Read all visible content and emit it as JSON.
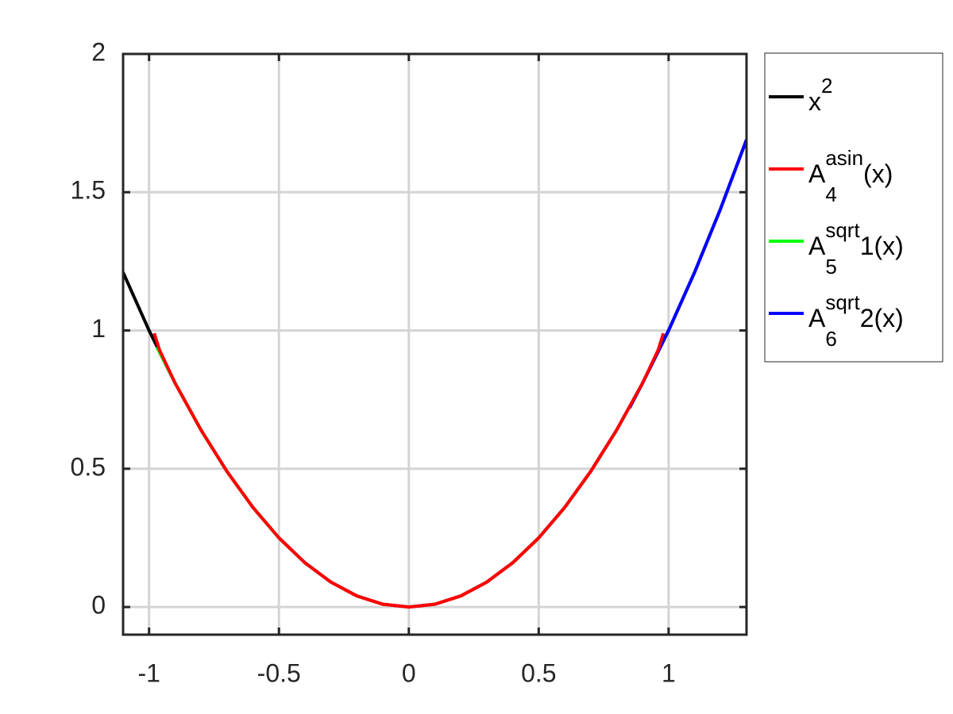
{
  "chart_data": {
    "type": "line",
    "xlim": [
      -1.1,
      1.3
    ],
    "ylim": [
      -0.1,
      2
    ],
    "xticks": [
      -1,
      -0.5,
      0,
      0.5,
      1
    ],
    "yticks": [
      0,
      0.5,
      1,
      1.5,
      2
    ],
    "grid": true,
    "legend": "outside-right",
    "series": [
      {
        "name_parts": [
          {
            "text": "x"
          },
          {
            "text": "2",
            "script": "sup"
          }
        ],
        "color": "#000000",
        "x": [
          -1.1,
          -1.0,
          -0.9,
          -0.8,
          -0.7,
          -0.6,
          -0.5,
          -0.4,
          -0.3,
          -0.2,
          -0.1,
          0,
          0.1,
          0.2,
          0.3,
          0.4,
          0.5,
          0.6,
          0.7,
          0.8,
          0.9,
          1.0,
          1.1,
          1.2,
          1.3
        ],
        "values": [
          1.21,
          1,
          0.81,
          0.64,
          0.49,
          0.36,
          0.25,
          0.16,
          0.09,
          0.04,
          0.01,
          0,
          0.01,
          0.04,
          0.09,
          0.16,
          0.25,
          0.36,
          0.49,
          0.64,
          0.81,
          1,
          1.21,
          1.44,
          1.69
        ]
      },
      {
        "name_parts": [
          {
            "text": "A"
          },
          {
            "text": "4",
            "script": "sub"
          },
          {
            "text": "asin",
            "script": "sup"
          },
          {
            "text": "(x)"
          }
        ],
        "color": "#ff0000",
        "x": [
          -0.98,
          -0.96,
          -0.9,
          -0.8,
          -0.7,
          -0.6,
          -0.5,
          -0.4,
          -0.3,
          -0.2,
          -0.1,
          0,
          0.1,
          0.2,
          0.3,
          0.4,
          0.5,
          0.6,
          0.7,
          0.8,
          0.9,
          0.96,
          0.98
        ],
        "values": [
          0.99,
          0.93,
          0.81,
          0.64,
          0.49,
          0.36,
          0.25,
          0.16,
          0.09,
          0.04,
          0.01,
          0,
          0.01,
          0.04,
          0.09,
          0.16,
          0.25,
          0.36,
          0.49,
          0.64,
          0.81,
          0.93,
          0.99
        ]
      },
      {
        "name_parts": [
          {
            "text": "A"
          },
          {
            "text": "5",
            "script": "sub"
          },
          {
            "text": "sqrt",
            "script": "sup"
          },
          {
            "text": "1(x)"
          }
        ],
        "color": "#00ff00",
        "x": [
          -0.97,
          -0.9,
          -0.8,
          -0.7,
          -0.6,
          -0.5
        ],
        "values": [
          0.94,
          0.81,
          0.64,
          0.49,
          0.36,
          0.25
        ]
      },
      {
        "name_parts": [
          {
            "text": "A"
          },
          {
            "text": "6",
            "script": "sub"
          },
          {
            "text": "sqrt",
            "script": "sup"
          },
          {
            "text": "2(x)"
          }
        ],
        "color": "#0000ff",
        "x": [
          0.85,
          0.9,
          1.0,
          1.1,
          1.2,
          1.3
        ],
        "values": [
          0.72,
          0.81,
          1,
          1.21,
          1.44,
          1.69
        ]
      }
    ]
  }
}
